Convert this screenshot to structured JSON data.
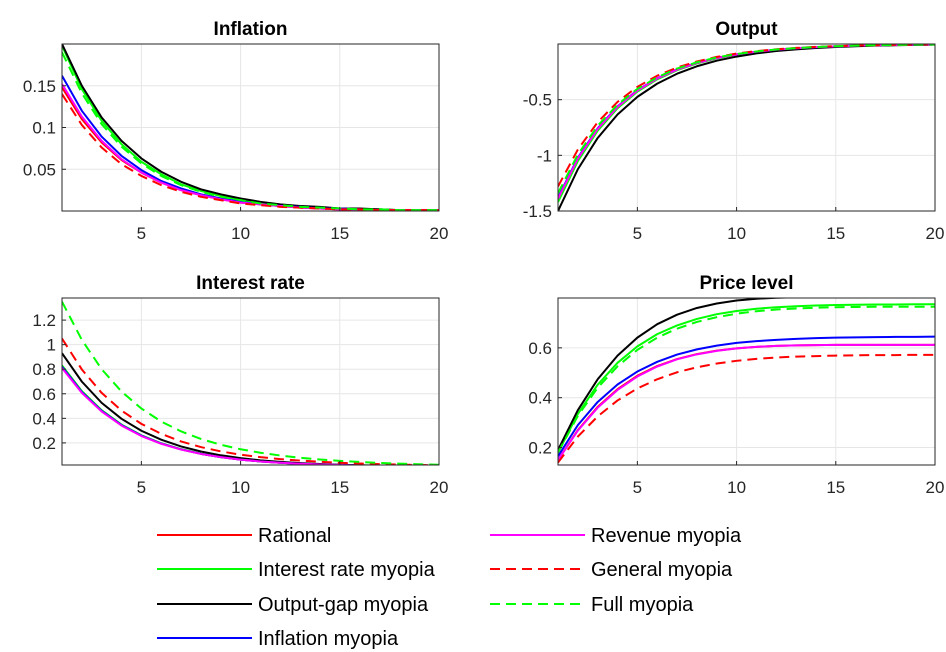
{
  "figure": {
    "legend_placement": "bottom"
  },
  "colors": {
    "rational": "#ff0000",
    "interest_rate_myopia": "#00ff00",
    "output_gap_myopia": "#000000",
    "inflation_myopia": "#0000ff",
    "revenue_myopia": "#ff00ff",
    "general_myopia": "#ff0000",
    "full_myopia": "#00ff00",
    "grid": "#e6e6e6",
    "axis": "#262626"
  },
  "legend": [
    {
      "label": "Rational",
      "color": "#ff0000",
      "dash": "solid"
    },
    {
      "label": "Interest rate myopia",
      "color": "#00ff00",
      "dash": "solid"
    },
    {
      "label": "Output-gap myopia",
      "color": "#000000",
      "dash": "solid"
    },
    {
      "label": "Inflation myopia",
      "color": "#0000ff",
      "dash": "solid"
    },
    {
      "label": "Revenue myopia",
      "color": "#ff00ff",
      "dash": "solid"
    },
    {
      "label": "General myopia",
      "color": "#ff0000",
      "dash": "dashed"
    },
    {
      "label": "Full myopia",
      "color": "#00ff00",
      "dash": "dashed"
    }
  ],
  "chart_data": [
    {
      "type": "line",
      "title": "Inflation",
      "x": [
        1,
        2,
        3,
        4,
        5,
        6,
        7,
        8,
        9,
        10,
        11,
        12,
        13,
        14,
        15,
        16,
        17,
        18,
        19,
        20
      ],
      "xlim": [
        1,
        20
      ],
      "ylim": [
        0,
        0.2
      ],
      "xticks": [
        5,
        10,
        15,
        20
      ],
      "yticks": [
        0.05,
        0.1,
        0.15
      ],
      "ytick_labels": [
        "0.05",
        "0.1",
        "0.15"
      ],
      "grid": true,
      "series": [
        {
          "name": "Rational",
          "color": "#ff0000",
          "dash": "solid",
          "values": [
            0.148,
            0.11,
            0.082,
            0.061,
            0.046,
            0.034,
            0.025,
            0.019,
            0.014,
            0.01,
            0.008,
            0.006,
            0.004,
            0.003,
            0.002,
            0.002,
            0.001,
            0.001,
            0.001,
            0.001
          ]
        },
        {
          "name": "Interest rate myopia",
          "color": "#00ff00",
          "dash": "solid",
          "values": [
            0.198,
            0.146,
            0.108,
            0.08,
            0.059,
            0.044,
            0.032,
            0.024,
            0.018,
            0.013,
            0.01,
            0.007,
            0.005,
            0.004,
            0.003,
            0.002,
            0.002,
            0.001,
            0.001,
            0.001
          ]
        },
        {
          "name": "Output-gap myopia",
          "color": "#000000",
          "dash": "solid",
          "values": [
            0.2,
            0.15,
            0.112,
            0.084,
            0.063,
            0.047,
            0.035,
            0.026,
            0.02,
            0.015,
            0.011,
            0.008,
            0.006,
            0.005,
            0.003,
            0.003,
            0.002,
            0.001,
            0.001,
            0.001
          ]
        },
        {
          "name": "Inflation myopia",
          "color": "#0000ff",
          "dash": "solid",
          "values": [
            0.162,
            0.12,
            0.089,
            0.066,
            0.049,
            0.036,
            0.027,
            0.02,
            0.015,
            0.011,
            0.008,
            0.006,
            0.005,
            0.003,
            0.003,
            0.002,
            0.001,
            0.001,
            0.001,
            0.001
          ]
        },
        {
          "name": "Revenue myopia",
          "color": "#ff00ff",
          "dash": "solid",
          "values": [
            0.152,
            0.113,
            0.084,
            0.062,
            0.046,
            0.034,
            0.025,
            0.019,
            0.014,
            0.01,
            0.008,
            0.006,
            0.004,
            0.003,
            0.002,
            0.002,
            0.001,
            0.001,
            0.001,
            0.001
          ]
        },
        {
          "name": "General myopia",
          "color": "#ff0000",
          "dash": "dashed",
          "values": [
            0.14,
            0.103,
            0.076,
            0.056,
            0.042,
            0.031,
            0.023,
            0.017,
            0.013,
            0.009,
            0.007,
            0.005,
            0.004,
            0.003,
            0.002,
            0.002,
            0.001,
            0.001,
            0.001,
            0.001
          ]
        },
        {
          "name": "Full myopia",
          "color": "#00ff00",
          "dash": "dashed",
          "values": [
            0.19,
            0.141,
            0.104,
            0.077,
            0.057,
            0.042,
            0.031,
            0.023,
            0.017,
            0.013,
            0.009,
            0.007,
            0.005,
            0.004,
            0.003,
            0.002,
            0.002,
            0.001,
            0.001,
            0.001
          ]
        }
      ]
    },
    {
      "type": "line",
      "title": "Output",
      "x": [
        1,
        2,
        3,
        4,
        5,
        6,
        7,
        8,
        9,
        10,
        11,
        12,
        13,
        14,
        15,
        16,
        17,
        18,
        19,
        20
      ],
      "xlim": [
        1,
        20
      ],
      "ylim": [
        -1.5,
        0
      ],
      "xticks": [
        5,
        10,
        15,
        20
      ],
      "yticks": [
        -1.5,
        -1,
        -0.5
      ],
      "ytick_labels": [
        "-1.5",
        "-1",
        "-0.5"
      ],
      "grid": true,
      "series": [
        {
          "name": "Rational",
          "color": "#ff0000",
          "dash": "solid",
          "values": [
            -1.4,
            -1.037,
            -0.768,
            -0.569,
            -0.422,
            -0.312,
            -0.231,
            -0.172,
            -0.127,
            -0.094,
            -0.07,
            -0.052,
            -0.038,
            -0.028,
            -0.021,
            -0.016,
            -0.012,
            -0.009,
            -0.006,
            -0.005
          ]
        },
        {
          "name": "Interest rate myopia",
          "color": "#00ff00",
          "dash": "solid",
          "values": [
            -1.42,
            -1.052,
            -0.779,
            -0.577,
            -0.428,
            -0.317,
            -0.235,
            -0.174,
            -0.129,
            -0.095,
            -0.071,
            -0.052,
            -0.039,
            -0.029,
            -0.021,
            -0.016,
            -0.012,
            -0.009,
            -0.006,
            -0.005
          ]
        },
        {
          "name": "Output-gap myopia",
          "color": "#000000",
          "dash": "solid",
          "values": [
            -1.5,
            -1.125,
            -0.844,
            -0.633,
            -0.475,
            -0.356,
            -0.267,
            -0.2,
            -0.15,
            -0.113,
            -0.084,
            -0.063,
            -0.048,
            -0.036,
            -0.027,
            -0.02,
            -0.015,
            -0.011,
            -0.008,
            -0.006
          ]
        },
        {
          "name": "Inflation myopia",
          "color": "#0000ff",
          "dash": "solid",
          "values": [
            -1.38,
            -1.022,
            -0.757,
            -0.561,
            -0.415,
            -0.308,
            -0.228,
            -0.169,
            -0.125,
            -0.093,
            -0.069,
            -0.051,
            -0.038,
            -0.028,
            -0.021,
            -0.015,
            -0.011,
            -0.008,
            -0.006,
            -0.005
          ]
        },
        {
          "name": "Revenue myopia",
          "color": "#ff00ff",
          "dash": "solid",
          "values": [
            -1.39,
            -1.03,
            -0.763,
            -0.565,
            -0.419,
            -0.31,
            -0.23,
            -0.17,
            -0.126,
            -0.093,
            -0.069,
            -0.051,
            -0.038,
            -0.028,
            -0.021,
            -0.015,
            -0.011,
            -0.008,
            -0.006,
            -0.005
          ]
        },
        {
          "name": "General myopia",
          "color": "#ff0000",
          "dash": "dashed",
          "values": [
            -1.28,
            -0.948,
            -0.702,
            -0.52,
            -0.385,
            -0.285,
            -0.211,
            -0.157,
            -0.116,
            -0.086,
            -0.064,
            -0.047,
            -0.035,
            -0.026,
            -0.019,
            -0.014,
            -0.011,
            -0.008,
            -0.006,
            -0.004
          ]
        },
        {
          "name": "Full myopia",
          "color": "#00ff00",
          "dash": "dashed",
          "values": [
            -1.34,
            -0.993,
            -0.735,
            -0.545,
            -0.403,
            -0.299,
            -0.221,
            -0.164,
            -0.121,
            -0.09,
            -0.067,
            -0.049,
            -0.037,
            -0.027,
            -0.02,
            -0.015,
            -0.011,
            -0.008,
            -0.006,
            -0.004
          ]
        }
      ]
    },
    {
      "type": "line",
      "title": "Interest rate",
      "x": [
        1,
        2,
        3,
        4,
        5,
        6,
        7,
        8,
        9,
        10,
        11,
        12,
        13,
        14,
        15,
        16,
        17,
        18,
        19,
        20
      ],
      "xlim": [
        1,
        20
      ],
      "ylim": [
        0.02,
        1.38
      ],
      "xticks": [
        5,
        10,
        15,
        20
      ],
      "yticks": [
        0.2,
        0.4,
        0.6,
        0.8,
        1,
        1.2
      ],
      "ytick_labels": [
        "0.2",
        "0.4",
        "0.6",
        "0.8",
        "1",
        "1.2"
      ],
      "grid": true,
      "series": [
        {
          "name": "Rational",
          "color": "#ff0000",
          "dash": "solid",
          "values": [
            0.82,
            0.614,
            0.46,
            0.345,
            0.259,
            0.195,
            0.147,
            0.111,
            0.084,
            0.064,
            0.049,
            0.038,
            0.03,
            0.024,
            0.02,
            0.016,
            0.014,
            0.012,
            0.011,
            0.01
          ]
        },
        {
          "name": "Interest rate myopia",
          "color": "#00ff00",
          "dash": "solid",
          "values": [
            0.83,
            0.622,
            0.466,
            0.349,
            0.262,
            0.197,
            0.149,
            0.112,
            0.085,
            0.065,
            0.05,
            0.039,
            0.03,
            0.024,
            0.02,
            0.016,
            0.014,
            0.012,
            0.011,
            0.01
          ]
        },
        {
          "name": "Output-gap myopia",
          "color": "#000000",
          "dash": "solid",
          "values": [
            0.93,
            0.699,
            0.526,
            0.396,
            0.299,
            0.226,
            0.171,
            0.13,
            0.099,
            0.076,
            0.058,
            0.045,
            0.035,
            0.028,
            0.022,
            0.018,
            0.015,
            0.013,
            0.011,
            0.01
          ]
        },
        {
          "name": "Inflation myopia",
          "color": "#0000ff",
          "dash": "solid",
          "values": [
            0.82,
            0.614,
            0.46,
            0.345,
            0.259,
            0.195,
            0.147,
            0.111,
            0.084,
            0.064,
            0.049,
            0.038,
            0.03,
            0.024,
            0.02,
            0.016,
            0.014,
            0.012,
            0.011,
            0.01
          ]
        },
        {
          "name": "Revenue myopia",
          "color": "#ff00ff",
          "dash": "solid",
          "values": [
            0.81,
            0.607,
            0.455,
            0.341,
            0.256,
            0.193,
            0.146,
            0.11,
            0.084,
            0.064,
            0.049,
            0.038,
            0.03,
            0.024,
            0.02,
            0.016,
            0.014,
            0.012,
            0.011,
            0.01
          ]
        },
        {
          "name": "General myopia",
          "color": "#ff0000",
          "dash": "dashed",
          "values": [
            1.05,
            0.798,
            0.607,
            0.463,
            0.355,
            0.274,
            0.212,
            0.166,
            0.131,
            0.104,
            0.084,
            0.068,
            0.056,
            0.046,
            0.038,
            0.032,
            0.027,
            0.023,
            0.02,
            0.017
          ]
        },
        {
          "name": "Full myopia",
          "color": "#00ff00",
          "dash": "dashed",
          "values": [
            1.35,
            1.039,
            0.8,
            0.618,
            0.48,
            0.374,
            0.294,
            0.232,
            0.185,
            0.148,
            0.12,
            0.097,
            0.079,
            0.065,
            0.054,
            0.045,
            0.037,
            0.031,
            0.026,
            0.022
          ]
        }
      ]
    },
    {
      "type": "line",
      "title": "Price level",
      "x": [
        1,
        2,
        3,
        4,
        5,
        6,
        7,
        8,
        9,
        10,
        11,
        12,
        13,
        14,
        15,
        16,
        17,
        18,
        19,
        20
      ],
      "xlim": [
        1,
        20
      ],
      "ylim": [
        0.13,
        0.8
      ],
      "xticks": [
        5,
        10,
        15,
        20
      ],
      "yticks": [
        0.2,
        0.4,
        0.6
      ],
      "ytick_labels": [
        "0.2",
        "0.4",
        "0.6"
      ],
      "grid": true,
      "series": [
        {
          "name": "Rational",
          "color": "#ff0000",
          "dash": "solid",
          "values": [
            0.15,
            0.27,
            0.363,
            0.434,
            0.488,
            0.527,
            0.555,
            0.575,
            0.589,
            0.598,
            0.604,
            0.608,
            0.61,
            0.611,
            0.612,
            0.612,
            0.612,
            0.612,
            0.612,
            0.612
          ]
        },
        {
          "name": "Interest rate myopia",
          "color": "#00ff00",
          "dash": "solid",
          "values": [
            0.18,
            0.335,
            0.452,
            0.54,
            0.606,
            0.655,
            0.69,
            0.716,
            0.735,
            0.748,
            0.757,
            0.763,
            0.767,
            0.77,
            0.772,
            0.773,
            0.774,
            0.774,
            0.775,
            0.775
          ]
        },
        {
          "name": "Output-gap myopia",
          "color": "#000000",
          "dash": "solid",
          "values": [
            0.19,
            0.35,
            0.474,
            0.569,
            0.641,
            0.695,
            0.733,
            0.76,
            0.778,
            0.79,
            0.797,
            0.801,
            0.803,
            0.804,
            0.805,
            0.805,
            0.805,
            0.805,
            0.805,
            0.805
          ]
        },
        {
          "name": "Inflation myopia",
          "color": "#0000ff",
          "dash": "solid",
          "values": [
            0.165,
            0.29,
            0.383,
            0.453,
            0.505,
            0.544,
            0.573,
            0.594,
            0.609,
            0.62,
            0.627,
            0.632,
            0.636,
            0.639,
            0.641,
            0.642,
            0.643,
            0.644,
            0.644,
            0.645
          ]
        },
        {
          "name": "Revenue myopia",
          "color": "#ff00ff",
          "dash": "solid",
          "values": [
            0.15,
            0.268,
            0.36,
            0.431,
            0.485,
            0.525,
            0.554,
            0.574,
            0.588,
            0.598,
            0.604,
            0.608,
            0.61,
            0.611,
            0.612,
            0.612,
            0.612,
            0.612,
            0.612,
            0.612
          ]
        },
        {
          "name": "General myopia",
          "color": "#ff0000",
          "dash": "dashed",
          "values": [
            0.14,
            0.244,
            0.325,
            0.389,
            0.437,
            0.474,
            0.502,
            0.522,
            0.537,
            0.548,
            0.556,
            0.561,
            0.565,
            0.567,
            0.569,
            0.57,
            0.571,
            0.571,
            0.572,
            0.572
          ]
        },
        {
          "name": "Full myopia",
          "color": "#00ff00",
          "dash": "dashed",
          "values": [
            0.18,
            0.327,
            0.44,
            0.526,
            0.592,
            0.641,
            0.677,
            0.704,
            0.723,
            0.737,
            0.747,
            0.754,
            0.758,
            0.761,
            0.763,
            0.764,
            0.765,
            0.765,
            0.765,
            0.765
          ]
        }
      ]
    }
  ]
}
